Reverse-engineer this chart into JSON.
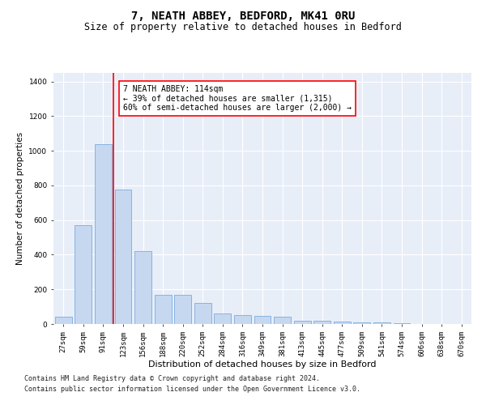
{
  "title": "7, NEATH ABBEY, BEDFORD, MK41 0RU",
  "subtitle": "Size of property relative to detached houses in Bedford",
  "xlabel": "Distribution of detached houses by size in Bedford",
  "ylabel": "Number of detached properties",
  "categories": [
    "27sqm",
    "59sqm",
    "91sqm",
    "123sqm",
    "156sqm",
    "188sqm",
    "220sqm",
    "252sqm",
    "284sqm",
    "316sqm",
    "349sqm",
    "381sqm",
    "413sqm",
    "445sqm",
    "477sqm",
    "509sqm",
    "541sqm",
    "574sqm",
    "606sqm",
    "638sqm",
    "670sqm"
  ],
  "values": [
    40,
    570,
    1040,
    775,
    420,
    170,
    170,
    120,
    60,
    50,
    45,
    40,
    20,
    20,
    15,
    10,
    8,
    5,
    2,
    0,
    0
  ],
  "bar_color": "#c5d8f0",
  "bar_edge_color": "#6a9fd8",
  "vline_color": "red",
  "vline_index": 2.5,
  "annotation_text": "7 NEATH ABBEY: 114sqm\n← 39% of detached houses are smaller (1,315)\n60% of semi-detached houses are larger (2,000) →",
  "annotation_box_color": "white",
  "annotation_box_edge": "red",
  "ylim": [
    0,
    1450
  ],
  "yticks": [
    0,
    200,
    400,
    600,
    800,
    1000,
    1200,
    1400
  ],
  "plot_bg_color": "#e8eef8",
  "footer_line1": "Contains HM Land Registry data © Crown copyright and database right 2024.",
  "footer_line2": "Contains public sector information licensed under the Open Government Licence v3.0.",
  "title_fontsize": 10,
  "subtitle_fontsize": 8.5,
  "tick_fontsize": 6.5,
  "xlabel_fontsize": 8,
  "ylabel_fontsize": 7.5,
  "annotation_fontsize": 7,
  "footer_fontsize": 6
}
